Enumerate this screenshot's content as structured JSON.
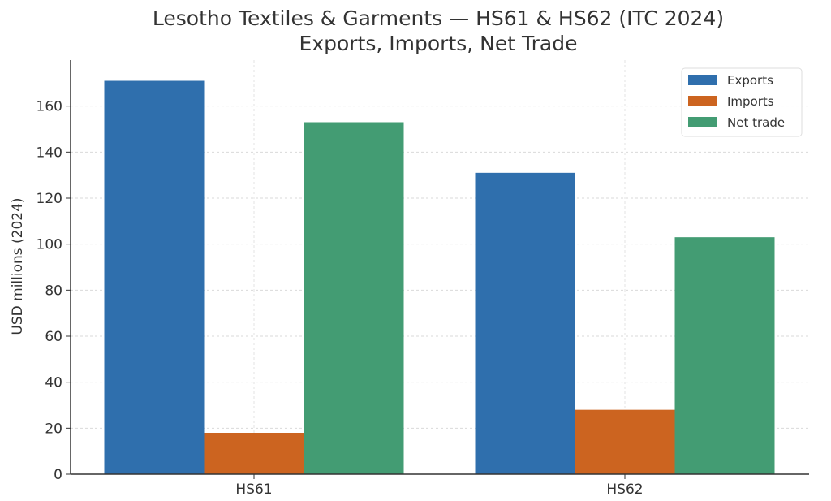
{
  "chart_data": {
    "type": "bar",
    "title": "Lesotho Textiles & Garments — HS61 & HS62 (ITC 2024)",
    "subtitle": "Exports, Imports, Net Trade",
    "xlabel": "",
    "ylabel": "USD millions (2024)",
    "categories": [
      "HS61",
      "HS62"
    ],
    "series": [
      {
        "name": "Exports",
        "color": "#2f6fad",
        "values": [
          171,
          131
        ]
      },
      {
        "name": "Imports",
        "color": "#cc6420",
        "values": [
          18,
          28
        ]
      },
      {
        "name": "Net trade",
        "color": "#439c73",
        "values": [
          153,
          103
        ]
      }
    ],
    "ylim": [
      0,
      180
    ],
    "yticks": [
      "0",
      "20",
      "40",
      "60",
      "80",
      "100",
      "120",
      "140",
      "160"
    ],
    "grid": true,
    "legend_position": "top-right"
  }
}
